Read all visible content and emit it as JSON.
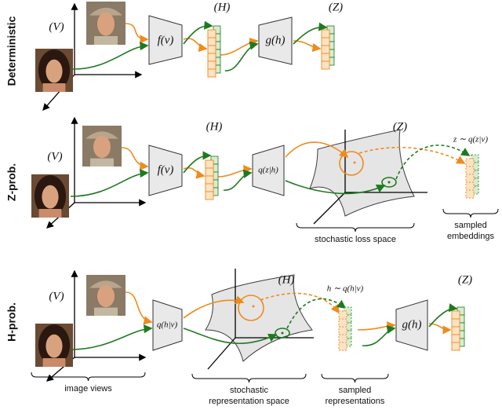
{
  "rows": [
    {
      "label": "Deterministic",
      "view": "(V)",
      "encoder": "f(v)",
      "rep": "(H)",
      "head": "g(h)",
      "emb": "(Z)"
    },
    {
      "label": "Z-prob.",
      "view": "(V)",
      "encoder": "f(v)",
      "rep": "(H)",
      "head": "q(z|h)",
      "emb": "(Z)",
      "sample": "z ∼ q(z|v)",
      "braces": [
        [
          "stochastic loss space"
        ],
        [
          "sampled",
          "embeddings"
        ]
      ]
    },
    {
      "label": "H-prob.",
      "view": "(V)",
      "encoder": "q(h|v)",
      "rep": "(H)",
      "sample": "h ∼ q(h|v)",
      "head": "g(h)",
      "emb": "(Z)",
      "braces": [
        [
          "image views"
        ],
        [
          "stochastic",
          "representation space"
        ],
        [
          "sampled",
          "representations"
        ]
      ]
    }
  ]
}
